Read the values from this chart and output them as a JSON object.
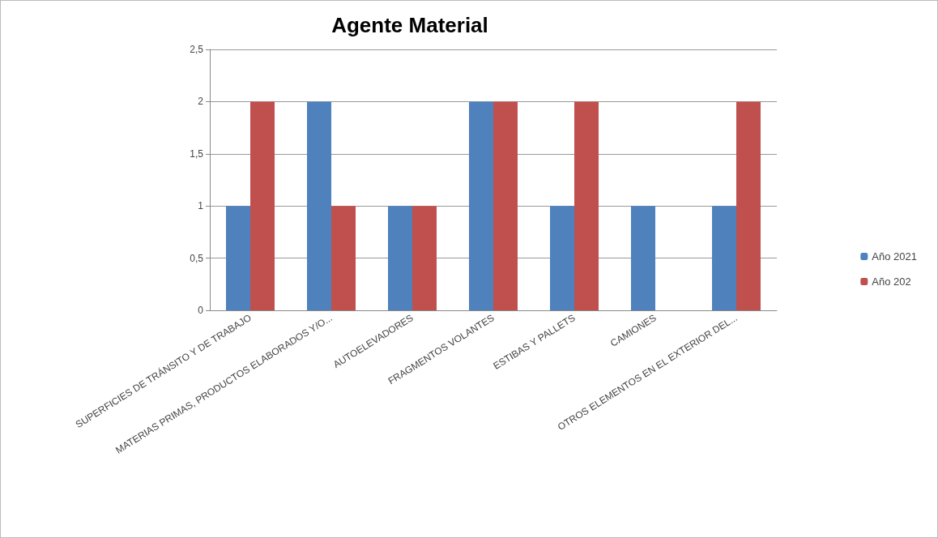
{
  "chart_data": {
    "type": "bar",
    "title": "Agente Material",
    "categories": [
      "SUPERFICIES DE TRÁNSITO Y DE TRABAJO",
      "MATERIAS PRIMAS, PRODUCTOS ELABORADOS Y/O...",
      "AUTOELEVADORES",
      "FRAGMENTOS VOLANTES",
      "ESTIBAS Y PALLETS",
      "CAMIONES",
      "OTROS ELEMENTOS EN EL EXTERIOR DEL..."
    ],
    "series": [
      {
        "name": "Año 2021",
        "color": "#4f81bd",
        "values": [
          1,
          2,
          1,
          2,
          1,
          1,
          1
        ]
      },
      {
        "name": "Año 202",
        "color": "#c0504d",
        "values": [
          2,
          1,
          1,
          2,
          2,
          null,
          2
        ]
      }
    ],
    "ylim": [
      0,
      2.5
    ],
    "yticks": [
      0,
      {
        "value": 0.5,
        "label": "0,5"
      },
      1,
      {
        "value": 1.5,
        "label": "1,5"
      },
      2,
      {
        "value": 2.5,
        "label": "2,5"
      }
    ],
    "grid": "y",
    "legend": "right"
  }
}
